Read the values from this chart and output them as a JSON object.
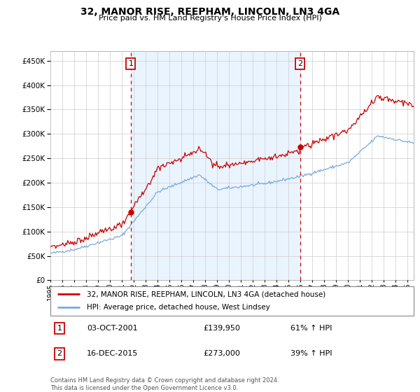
{
  "title": "32, MANOR RISE, REEPHAM, LINCOLN, LN3 4GA",
  "subtitle": "Price paid vs. HM Land Registry's House Price Index (HPI)",
  "legend_line1": "32, MANOR RISE, REEPHAM, LINCOLN, LN3 4GA (detached house)",
  "legend_line2": "HPI: Average price, detached house, West Lindsey",
  "sale1_date": "03-OCT-2001",
  "sale1_price": 139950,
  "sale1_label": "61% ↑ HPI",
  "sale1_year": 2001.75,
  "sale2_date": "16-DEC-2015",
  "sale2_price": 273000,
  "sale2_label": "39% ↑ HPI",
  "sale2_year": 2015.96,
  "footer1": "Contains HM Land Registry data © Crown copyright and database right 2024.",
  "footer2": "This data is licensed under the Open Government Licence v3.0.",
  "red_color": "#cc0000",
  "blue_color": "#7aaadd",
  "blue_fill": "#ddeeff",
  "background_color": "#ffffff",
  "grid_color": "#cccccc",
  "ylim_max": 470000,
  "xlim_start": 1995.0,
  "xlim_end": 2025.5,
  "title_fontsize": 10,
  "subtitle_fontsize": 8
}
